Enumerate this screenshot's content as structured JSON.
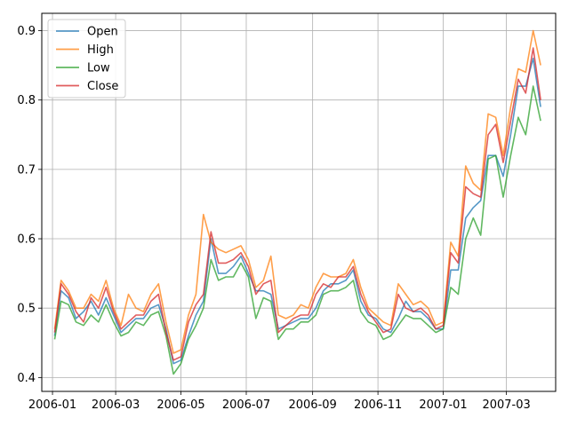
{
  "chart_data": {
    "type": "line",
    "title": "",
    "xlabel": "",
    "ylabel": "",
    "x_tick_labels": [
      "2006-01",
      "2006-03",
      "2006-05",
      "2006-07",
      "2006-09",
      "2006-11",
      "2007-01",
      "2007-03"
    ],
    "x_tick_dates": [
      "2006-01-01",
      "2006-03-01",
      "2006-05-01",
      "2006-07-01",
      "2006-09-01",
      "2006-11-01",
      "2007-01-01",
      "2007-03-01"
    ],
    "xlim": [
      "2005-12-22",
      "2007-04-16"
    ],
    "ylim": [
      0.38,
      0.925
    ],
    "y_ticks": [
      0.4,
      0.5,
      0.6,
      0.7,
      0.8,
      0.9
    ],
    "y_tick_labels": [
      "0.4",
      "0.5",
      "0.6",
      "0.7",
      "0.8",
      "0.9"
    ],
    "grid": true,
    "legend_position": "upper-left",
    "dates": [
      "2006-01-03",
      "2006-01-09",
      "2006-01-16",
      "2006-01-23",
      "2006-01-30",
      "2006-02-06",
      "2006-02-13",
      "2006-02-20",
      "2006-02-27",
      "2006-03-06",
      "2006-03-13",
      "2006-03-20",
      "2006-03-27",
      "2006-04-03",
      "2006-04-10",
      "2006-04-17",
      "2006-04-24",
      "2006-05-01",
      "2006-05-08",
      "2006-05-15",
      "2006-05-22",
      "2006-05-29",
      "2006-06-05",
      "2006-06-12",
      "2006-06-19",
      "2006-06-26",
      "2006-07-03",
      "2006-07-10",
      "2006-07-17",
      "2006-07-24",
      "2006-07-31",
      "2006-08-07",
      "2006-08-14",
      "2006-08-21",
      "2006-08-28",
      "2006-09-04",
      "2006-09-11",
      "2006-09-18",
      "2006-09-25",
      "2006-10-02",
      "2006-10-09",
      "2006-10-16",
      "2006-10-23",
      "2006-10-30",
      "2006-11-06",
      "2006-11-13",
      "2006-11-20",
      "2006-11-27",
      "2006-12-04",
      "2006-12-11",
      "2006-12-18",
      "2006-12-25",
      "2007-01-01",
      "2007-01-08",
      "2007-01-15",
      "2007-01-22",
      "2007-01-29",
      "2007-02-05",
      "2007-02-12",
      "2007-02-19",
      "2007-02-26",
      "2007-03-05",
      "2007-03-12",
      "2007-03-19",
      "2007-03-26",
      "2007-04-02"
    ],
    "series": [
      {
        "name": "Open",
        "color": "#1f77b4",
        "values": [
          0.46,
          0.525,
          0.515,
          0.485,
          0.495,
          0.51,
          0.49,
          0.515,
          0.49,
          0.465,
          0.475,
          0.485,
          0.485,
          0.5,
          0.505,
          0.47,
          0.42,
          0.425,
          0.46,
          0.49,
          0.51,
          0.6,
          0.55,
          0.55,
          0.56,
          0.575,
          0.55,
          0.525,
          0.525,
          0.52,
          0.47,
          0.475,
          0.48,
          0.485,
          0.485,
          0.5,
          0.525,
          0.535,
          0.535,
          0.54,
          0.555,
          0.51,
          0.49,
          0.485,
          0.47,
          0.465,
          0.485,
          0.51,
          0.495,
          0.495,
          0.485,
          0.47,
          0.47,
          0.555,
          0.555,
          0.63,
          0.645,
          0.655,
          0.72,
          0.72,
          0.69,
          0.75,
          0.82,
          0.82,
          0.86,
          0.79
        ]
      },
      {
        "name": "High",
        "color": "#ff7f0e",
        "values": [
          0.47,
          0.54,
          0.525,
          0.5,
          0.5,
          0.52,
          0.51,
          0.54,
          0.5,
          0.475,
          0.52,
          0.5,
          0.495,
          0.52,
          0.535,
          0.48,
          0.435,
          0.44,
          0.49,
          0.52,
          0.635,
          0.595,
          0.585,
          0.58,
          0.585,
          0.59,
          0.57,
          0.53,
          0.54,
          0.575,
          0.49,
          0.485,
          0.49,
          0.505,
          0.5,
          0.53,
          0.55,
          0.545,
          0.545,
          0.55,
          0.57,
          0.53,
          0.5,
          0.49,
          0.48,
          0.475,
          0.535,
          0.52,
          0.505,
          0.51,
          0.5,
          0.475,
          0.48,
          0.595,
          0.575,
          0.705,
          0.68,
          0.67,
          0.78,
          0.775,
          0.72,
          0.79,
          0.845,
          0.84,
          0.9,
          0.85
        ]
      },
      {
        "name": "Low",
        "color": "#2ca02c",
        "values": [
          0.455,
          0.51,
          0.505,
          0.48,
          0.475,
          0.49,
          0.48,
          0.505,
          0.48,
          0.46,
          0.465,
          0.48,
          0.475,
          0.49,
          0.495,
          0.46,
          0.405,
          0.42,
          0.455,
          0.475,
          0.5,
          0.57,
          0.54,
          0.545,
          0.545,
          0.565,
          0.545,
          0.485,
          0.515,
          0.51,
          0.455,
          0.47,
          0.47,
          0.48,
          0.48,
          0.49,
          0.52,
          0.525,
          0.525,
          0.53,
          0.54,
          0.495,
          0.48,
          0.475,
          0.455,
          0.46,
          0.475,
          0.49,
          0.485,
          0.485,
          0.475,
          0.465,
          0.47,
          0.53,
          0.52,
          0.6,
          0.63,
          0.605,
          0.715,
          0.72,
          0.66,
          0.72,
          0.775,
          0.75,
          0.82,
          0.77
        ]
      },
      {
        "name": "Close",
        "color": "#d62728",
        "values": [
          0.465,
          0.535,
          0.52,
          0.495,
          0.48,
          0.515,
          0.5,
          0.53,
          0.495,
          0.47,
          0.48,
          0.49,
          0.49,
          0.51,
          0.52,
          0.465,
          0.425,
          0.43,
          0.48,
          0.505,
          0.52,
          0.61,
          0.565,
          0.565,
          0.57,
          0.58,
          0.56,
          0.52,
          0.535,
          0.54,
          0.465,
          0.475,
          0.485,
          0.49,
          0.49,
          0.52,
          0.535,
          0.53,
          0.545,
          0.545,
          0.56,
          0.52,
          0.495,
          0.48,
          0.465,
          0.47,
          0.52,
          0.5,
          0.495,
          0.5,
          0.49,
          0.47,
          0.475,
          0.58,
          0.565,
          0.675,
          0.665,
          0.66,
          0.75,
          0.765,
          0.71,
          0.77,
          0.83,
          0.81,
          0.875,
          0.8
        ]
      }
    ]
  }
}
